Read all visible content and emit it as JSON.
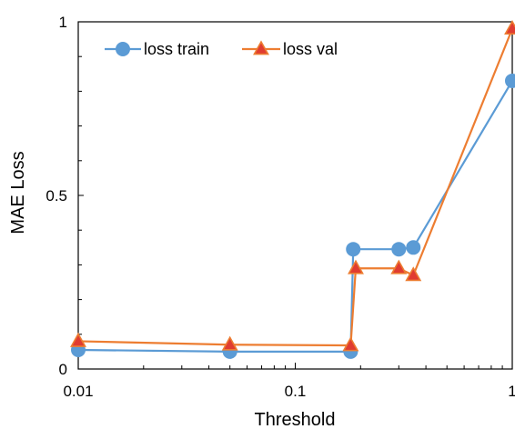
{
  "chart_data": {
    "type": "line",
    "xlabel": "Threshold",
    "ylabel": "MAE Loss",
    "xscale": "log",
    "xlim": [
      0.01,
      1
    ],
    "ylim": [
      0,
      1
    ],
    "x_ticks": [
      0.01,
      0.1,
      1
    ],
    "x_tick_labels": [
      "0.01",
      "0.1",
      "1"
    ],
    "y_ticks": [
      0,
      0.5,
      1
    ],
    "y_tick_labels": [
      "0",
      "0.5",
      "1"
    ],
    "grid": false,
    "legend_position": "top-left",
    "series": [
      {
        "name": "loss train",
        "color": "#5b9bd5",
        "marker": "circle",
        "line": "step",
        "x": [
          0.01,
          0.05,
          0.18,
          0.185,
          0.3,
          0.35,
          1
        ],
        "y": [
          0.055,
          0.05,
          0.05,
          0.345,
          0.345,
          0.35,
          0.83
        ]
      },
      {
        "name": "loss val",
        "color": "#ed7d31",
        "marker": "triangle",
        "marker_fill": "#e03c31",
        "line": "step",
        "x": [
          0.01,
          0.05,
          0.18,
          0.19,
          0.3,
          0.35,
          1
        ],
        "y": [
          0.08,
          0.07,
          0.068,
          0.29,
          0.29,
          0.27,
          0.98
        ]
      }
    ]
  }
}
